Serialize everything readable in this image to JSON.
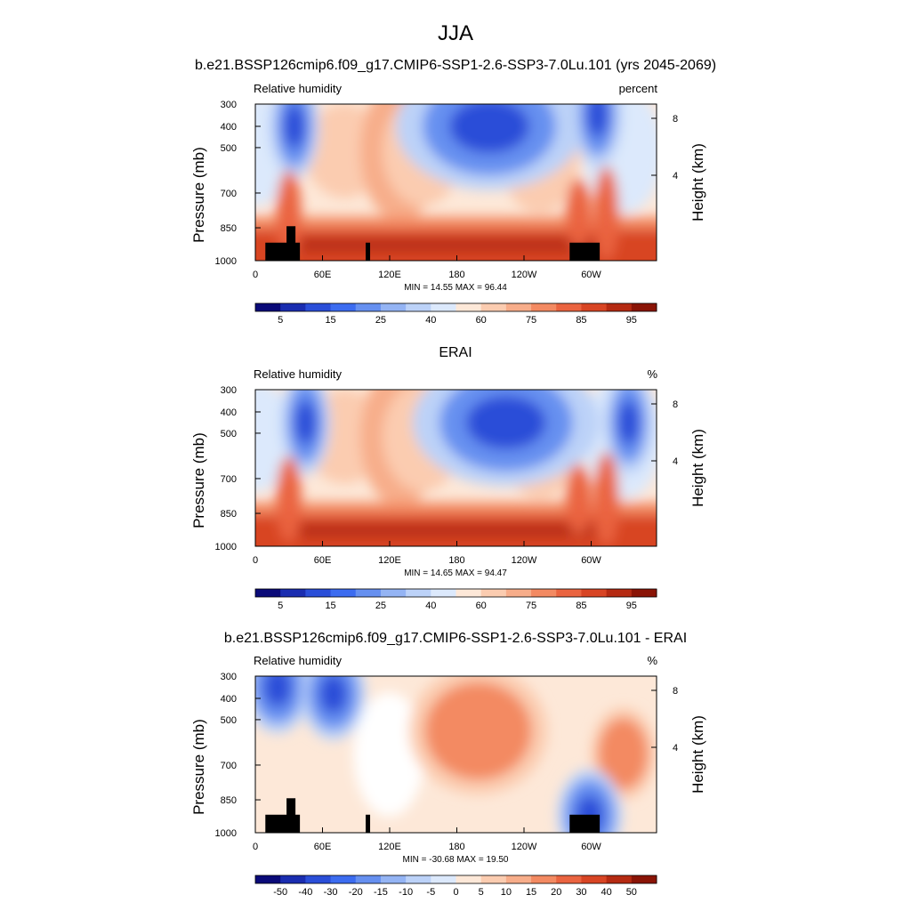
{
  "figure": {
    "title": "JJA"
  },
  "chart_data": [
    {
      "type": "heatmap",
      "title": "b.e21.BSSP126cmip6.f09_g17.CMIP6-SSP1-2.6-SSP3-7.0Lu.101 (yrs 2045-2069)",
      "left_label": "Relative humidity",
      "right_label": "percent",
      "ylabel": "Pressure (mb)",
      "ylabel_right": "Height (km)",
      "x_ticks": [
        "0",
        "60E",
        "120E",
        "180",
        "120W",
        "60W"
      ],
      "y_ticks": [
        "300",
        "400",
        "500",
        "700",
        "850",
        "1000"
      ],
      "height_ticks": [
        "8",
        "4"
      ],
      "min_max": "MIN = 14.55  MAX = 96.44",
      "colorbar_labels": [
        "5",
        "15",
        "25",
        "40",
        "60",
        "75",
        "85",
        "95"
      ],
      "colorbar_colors": [
        "#0a0a78",
        "#1a2db0",
        "#2a4ed8",
        "#3c6cf0",
        "#6690f0",
        "#94b4f4",
        "#bcd2f8",
        "#dce9fc",
        "#fde8d8",
        "#fbccb0",
        "#f7ad8a",
        "#f38a62",
        "#ea6440",
        "#d84524",
        "#b52a12",
        "#8a1406"
      ],
      "fields": {
        "low_moisture_cores": [
          {
            "lon": 35,
            "p": 400,
            "value": 15
          },
          {
            "lon": 210,
            "p": 400,
            "value": 15
          },
          {
            "lon": 307,
            "p": 350,
            "value": 25
          }
        ],
        "boundary_layer_max": 96.44
      },
      "terrain_blocks_lon": [
        [
          10,
          40
        ],
        [
          100,
          102
        ],
        [
          285,
          310
        ]
      ]
    },
    {
      "type": "heatmap",
      "title": "ERAI",
      "left_label": "Relative humidity",
      "right_label": "%",
      "ylabel": "Pressure (mb)",
      "ylabel_right": "Height (km)",
      "x_ticks": [
        "0",
        "60E",
        "120E",
        "180",
        "120W",
        "60W"
      ],
      "y_ticks": [
        "300",
        "400",
        "500",
        "700",
        "850",
        "1000"
      ],
      "height_ticks": [
        "8",
        "4"
      ],
      "min_max": "MIN = 14.65  MAX = 94.47",
      "colorbar_labels": [
        "5",
        "15",
        "25",
        "40",
        "60",
        "75",
        "85",
        "95"
      ],
      "colorbar_colors": [
        "#0a0a78",
        "#1a2db0",
        "#2a4ed8",
        "#3c6cf0",
        "#6690f0",
        "#94b4f4",
        "#bcd2f8",
        "#dce9fc",
        "#fde8d8",
        "#fbccb0",
        "#f7ad8a",
        "#f38a62",
        "#ea6440",
        "#d84524",
        "#b52a12",
        "#8a1406"
      ],
      "fields": {
        "low_moisture_cores": [
          {
            "lon": 45,
            "p": 450,
            "value": 15
          },
          {
            "lon": 225,
            "p": 450,
            "value": 15
          },
          {
            "lon": 335,
            "p": 450,
            "value": 25
          }
        ],
        "boundary_layer_max": 94.47
      }
    },
    {
      "type": "heatmap",
      "title": "b.e21.BSSP126cmip6.f09_g17.CMIP6-SSP1-2.6-SSP3-7.0Lu.101 - ERAI",
      "left_label": "Relative humidity",
      "right_label": "%",
      "ylabel": "Pressure (mb)",
      "ylabel_right": "Height (km)",
      "x_ticks": [
        "0",
        "60E",
        "120E",
        "180",
        "120W",
        "60W"
      ],
      "y_ticks": [
        "300",
        "400",
        "500",
        "700",
        "850",
        "1000"
      ],
      "height_ticks": [
        "8",
        "4"
      ],
      "min_max": "MIN = -30.68  MAX = 19.50",
      "colorbar_labels": [
        "-50",
        "-40",
        "-30",
        "-20",
        "-15",
        "-10",
        "-5",
        "0",
        "5",
        "10",
        "15",
        "20",
        "30",
        "40",
        "50"
      ],
      "colorbar_colors": [
        "#0a0a78",
        "#1a2db0",
        "#2a4ed8",
        "#3c6cf0",
        "#6690f0",
        "#94b4f4",
        "#bcd2f8",
        "#dce9fc",
        "#fde8d8",
        "#fbccb0",
        "#f7ad8a",
        "#f38a62",
        "#ea6440",
        "#d84524",
        "#b52a12",
        "#8a1406"
      ],
      "fields": {
        "anomaly_cores": [
          {
            "lon": 20,
            "p": 350,
            "value": -30
          },
          {
            "lon": 70,
            "p": 380,
            "value": -25
          },
          {
            "lon": 200,
            "p": 550,
            "value": 15
          },
          {
            "lon": 330,
            "p": 650,
            "value": 15
          },
          {
            "lon": 300,
            "p": 920,
            "value": -30
          }
        ]
      },
      "terrain_blocks_lon": [
        [
          10,
          40
        ],
        [
          100,
          102
        ],
        [
          285,
          310
        ]
      ]
    }
  ]
}
